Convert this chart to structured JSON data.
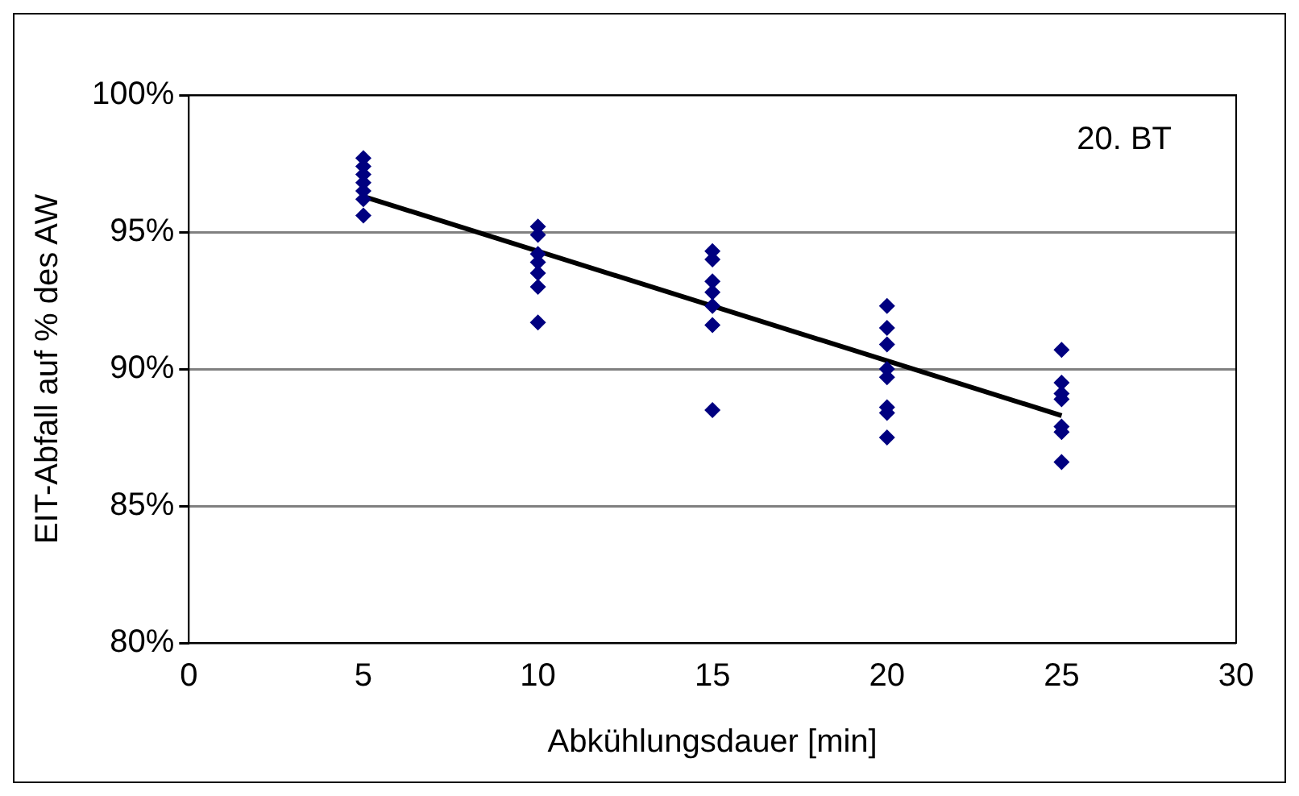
{
  "chart_data": {
    "type": "scatter",
    "xlabel": "Abkühlungsdauer [min]",
    "ylabel": "EIT-Abfall auf % des AW",
    "annotations": [
      "20. BT"
    ],
    "xlim": [
      0,
      30
    ],
    "xticks": [
      0,
      5,
      10,
      15,
      20,
      25,
      30
    ],
    "ylim": [
      80,
      100
    ],
    "yticks": [
      {
        "value": 80,
        "label": "80%"
      },
      {
        "value": 85,
        "label": "85%"
      },
      {
        "value": 90,
        "label": "90%"
      },
      {
        "value": 95,
        "label": "95%"
      },
      {
        "value": 100,
        "label": "100%"
      }
    ],
    "grid": "y",
    "legend": false,
    "marker": "diamond",
    "series": [
      {
        "type": "scatter",
        "color": "#000080",
        "x": [
          5,
          5,
          5,
          5,
          5,
          5,
          5,
          10,
          10,
          10,
          10,
          10,
          10,
          10,
          15,
          15,
          15,
          15,
          15,
          15,
          15,
          20,
          20,
          20,
          20,
          20,
          20,
          20,
          20,
          25,
          25,
          25,
          25,
          25,
          25,
          25
        ],
        "values": [
          97.7,
          97.4,
          97.1,
          96.8,
          96.5,
          96.2,
          95.6,
          95.2,
          94.9,
          94.2,
          93.9,
          93.5,
          93.0,
          91.7,
          94.3,
          94.0,
          93.2,
          92.8,
          92.3,
          91.6,
          88.5,
          92.3,
          91.5,
          90.9,
          90.0,
          89.7,
          88.6,
          88.4,
          87.5,
          90.7,
          89.5,
          89.1,
          88.9,
          87.9,
          87.7,
          86.6
        ]
      },
      {
        "type": "line",
        "color": "#000000",
        "x": [
          5,
          25
        ],
        "values": [
          96.3,
          88.3
        ],
        "marker": "none"
      }
    ]
  }
}
